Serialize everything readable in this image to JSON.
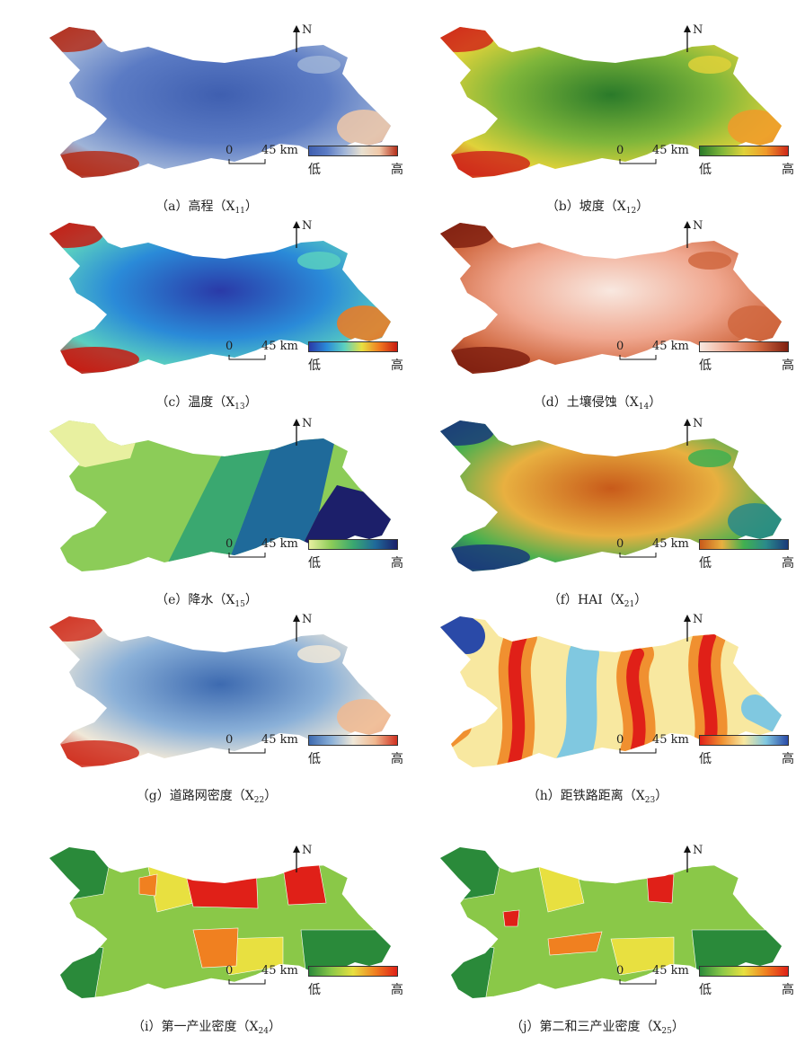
{
  "figure": {
    "north_label": "N",
    "scale_zero": "0",
    "scale_dist": "45 km",
    "panels": [
      {
        "id": "a",
        "caption_prefix": "（a）高程（X",
        "sub": "11",
        "caption_suffix": "）",
        "low": "低",
        "high": "高",
        "ramp": [
          "#3f5fb0",
          "#5b7bc4",
          "#9fb4d8",
          "#e8e0d0",
          "#f0c8a8",
          "#b52e1a"
        ]
      },
      {
        "id": "b",
        "caption_prefix": "（b）坡度（X",
        "sub": "12",
        "caption_suffix": "）",
        "low": "低",
        "high": "高",
        "ramp": [
          "#2a7a2a",
          "#7fb63a",
          "#e0d23a",
          "#f09a2a",
          "#d0281a"
        ]
      },
      {
        "id": "c",
        "caption_prefix": "（c）温度（X",
        "sub": "13",
        "caption_suffix": "）",
        "low": "低",
        "high": "高",
        "ramp": [
          "#2a3aa8",
          "#2a8ad8",
          "#5ad0c0",
          "#e8e040",
          "#f07a20",
          "#c81a10"
        ]
      },
      {
        "id": "d",
        "caption_prefix": "（d）土壤侵蚀（X",
        "sub": "14",
        "caption_suffix": "）",
        "low": "低",
        "high": "高",
        "ramp": [
          "#f8e8e0",
          "#f0a890",
          "#d06840",
          "#802010"
        ]
      },
      {
        "id": "e",
        "caption_prefix": "（e）降水（X",
        "sub": "15",
        "caption_suffix": "）",
        "low": "低",
        "high": "高",
        "ramp": [
          "#e8f0a0",
          "#8ccc58",
          "#3aa870",
          "#1f6a9a",
          "#1c1f6a"
        ]
      },
      {
        "id": "f",
        "caption_prefix": "（f）HAI（X",
        "sub": "21",
        "caption_suffix": "）",
        "low": "低",
        "high": "高",
        "ramp": [
          "#c85a1a",
          "#e8b040",
          "#40b050",
          "#2a8a8a",
          "#1a3a7a"
        ]
      },
      {
        "id": "g",
        "caption_prefix": "（g）道路网密度（X",
        "sub": "22",
        "caption_suffix": "）",
        "low": "低",
        "high": "高",
        "ramp": [
          "#3d6ab0",
          "#8ab0d8",
          "#f0e8d8",
          "#f0b890",
          "#d03020"
        ]
      },
      {
        "id": "h",
        "caption_prefix": "（h）距铁路距离（X",
        "sub": "23",
        "caption_suffix": "）",
        "low": "低",
        "high": "高",
        "ramp": [
          "#e02018",
          "#f09030",
          "#f8e8a0",
          "#80c8e0",
          "#2a4aa8"
        ]
      },
      {
        "id": "i",
        "caption_prefix": "（i）第一产业密度（X",
        "sub": "24",
        "caption_suffix": "）",
        "low": "低",
        "high": "高",
        "ramp": [
          "#2a8a3a",
          "#8ac848",
          "#e8e040",
          "#f08020",
          "#e02018"
        ]
      },
      {
        "id": "j",
        "caption_prefix": "（j）第二和三产业密度（X",
        "sub": "25",
        "caption_suffix": "）",
        "low": "低",
        "high": "高",
        "ramp": [
          "#2a8a3a",
          "#8ac848",
          "#e8e040",
          "#f08020",
          "#e02018"
        ]
      }
    ]
  }
}
